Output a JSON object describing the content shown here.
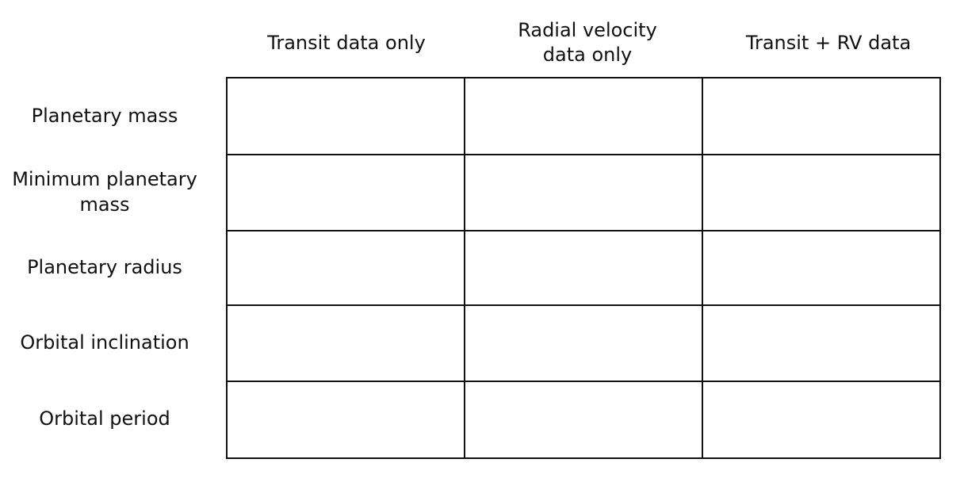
{
  "table": {
    "column_headers": [
      "Transit data only",
      "Radial velocity data only",
      "Transit + RV data"
    ],
    "row_labels": [
      "Planetary mass",
      "Minimum planetary mass",
      "Planetary radius",
      "Orbital inclination",
      "Orbital period"
    ],
    "cells": [
      [
        "",
        "",
        ""
      ],
      [
        "",
        "",
        ""
      ],
      [
        "",
        "",
        ""
      ],
      [
        "",
        "",
        ""
      ],
      [
        "",
        "",
        ""
      ]
    ],
    "border_color": "#111111"
  }
}
